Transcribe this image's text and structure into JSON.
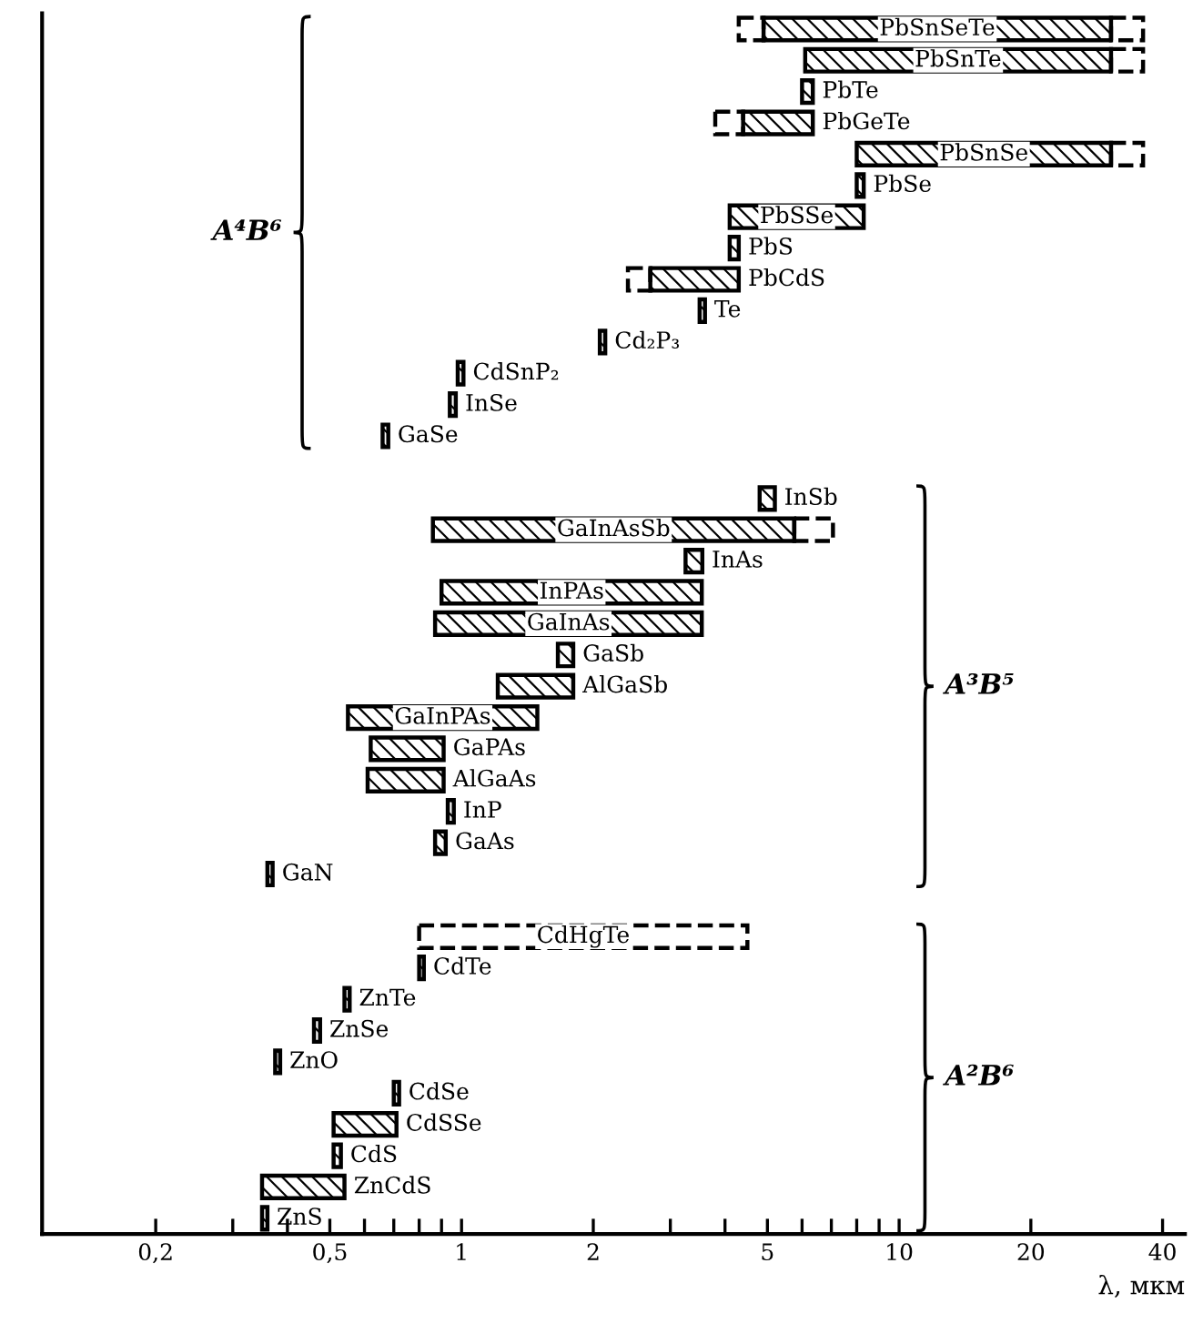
{
  "chart_data": {
    "type": "bar",
    "orientation": "horizontal",
    "log": "x",
    "tick_labels": "x",
    "xlabel": "λ, мкм",
    "xlim": [
      0.11,
      45
    ],
    "xticks": [
      {
        "value": 0.2,
        "label": "0,2"
      },
      {
        "value": 0.3,
        "label": null
      },
      {
        "value": 0.4,
        "label": null
      },
      {
        "value": 0.5,
        "label": "0,5"
      },
      {
        "value": 0.6,
        "label": null
      },
      {
        "value": 0.7,
        "label": null
      },
      {
        "value": 0.8,
        "label": null
      },
      {
        "value": 0.9,
        "label": null
      },
      1,
      2,
      {
        "value": 3,
        "label": null
      },
      {
        "value": 4,
        "label": null
      },
      5,
      {
        "value": 6,
        "label": null
      },
      {
        "value": 7,
        "label": null
      },
      {
        "value": 8,
        "label": null
      },
      {
        "value": 9,
        "label": null
      },
      10,
      20,
      40
    ],
    "categories": [
      "PbSnSeTe",
      "PbSnTe",
      "PbTe",
      "PbGeTe",
      "PbSnSe",
      "PbSe",
      "PbSSe",
      "PbS",
      "PbCdS",
      "Te",
      "Cd₂P₃",
      "CdSnP₂",
      "InSe",
      "GaSe",
      null,
      "InSb",
      "GaInAsSb",
      "InAs",
      "InPAs",
      "GaInAs",
      "GaSb",
      "AlGaSb",
      "GaInPAs",
      "GaPAs",
      "AlGaAs",
      "InP",
      "GaAs",
      "GaN",
      null,
      "CdHgTe",
      "CdTe",
      "ZnTe",
      "ZnSe",
      "ZnO",
      "CdSe",
      "CdSSe",
      "CdS",
      "ZnCdS",
      "ZnS"
    ],
    "series": [
      {
        "color": "#000000",
        "line_style": "solid",
        "base": [
          4.9,
          6.1,
          6.0,
          4.4,
          8.0,
          8.0,
          4.1,
          4.1,
          2.7,
          3.5,
          2.07,
          0.98,
          0.94,
          0.66,
          null,
          4.8,
          0.86,
          3.25,
          0.9,
          0.87,
          1.66,
          1.21,
          0.55,
          0.62,
          0.61,
          0.93,
          0.87,
          0.36,
          null,
          null,
          0.8,
          0.54,
          0.46,
          0.375,
          0.7,
          0.51,
          0.51,
          0.35,
          0.35
        ],
        "values": [
          25.6,
          24.4,
          0.35,
          1.95,
          22.5,
          0.3,
          4.2,
          0.2,
          1.6,
          0.1,
          0.06,
          0.03,
          0.03,
          0.02,
          null,
          0.4,
          4.9,
          0.3,
          2.64,
          2.67,
          0.14,
          0.59,
          0.94,
          0.29,
          0.3,
          0.03,
          0.05,
          0.01,
          null,
          null,
          0.02,
          0.015,
          0.015,
          0.01,
          0.02,
          0.2,
          0.02,
          0.19,
          0.01
        ]
      },
      {
        "color": "#000000",
        "line_style": "dashed",
        "base": [
          4.3,
          null,
          null,
          3.8,
          null,
          null,
          null,
          null,
          2.4,
          null,
          null,
          null,
          null,
          null,
          null,
          null,
          null,
          null,
          null,
          null,
          null,
          null,
          null,
          null,
          null,
          null,
          null,
          null,
          null,
          null,
          null,
          null,
          null,
          null,
          null,
          null,
          null,
          null,
          null
        ],
        "values": [
          0.6,
          null,
          null,
          0.6,
          null,
          null,
          null,
          null,
          0.3,
          null,
          null,
          null,
          null,
          null,
          null,
          null,
          null,
          null,
          null,
          null,
          null,
          null,
          null,
          null,
          null,
          null,
          null,
          null,
          null,
          null,
          null,
          null,
          null,
          null,
          null,
          null,
          null,
          null,
          null
        ]
      },
      {
        "color": "#000000",
        "line_style": "dashed",
        "base": [
          30.5,
          30.5,
          null,
          null,
          30.5,
          null,
          null,
          null,
          null,
          null,
          null,
          null,
          null,
          null,
          null,
          null,
          5.76,
          null,
          null,
          null,
          null,
          null,
          null,
          null,
          null,
          null,
          null,
          null,
          null,
          0.8,
          null,
          null,
          null,
          null,
          null,
          null,
          null,
          null,
          null
        ],
        "values": [
          5.6,
          5.6,
          null,
          null,
          5.6,
          null,
          null,
          null,
          null,
          null,
          null,
          null,
          null,
          null,
          null,
          null,
          1.3,
          null,
          null,
          null,
          null,
          null,
          null,
          null,
          null,
          null,
          null,
          null,
          null,
          3.7,
          null,
          null,
          null,
          null,
          null,
          null,
          null,
          null,
          null
        ]
      }
    ],
    "annotations": [
      "A⁴B⁶",
      "A³B⁵",
      "A²B⁶"
    ]
  }
}
